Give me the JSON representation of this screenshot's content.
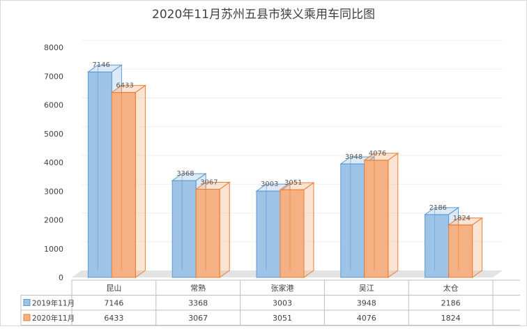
{
  "chart_data": {
    "type": "bar",
    "title": "2020年11月苏州五县市狭义乘用车同比图",
    "categories": [
      "昆山",
      "常熟",
      "张家港",
      "吴江",
      "太仓"
    ],
    "series": [
      {
        "name": "2019年11月",
        "values": [
          7146,
          3368,
          3003,
          3948,
          2186
        ],
        "color": "#9dc3e6",
        "edge": "#5b9bd5"
      },
      {
        "name": "2020年11月",
        "values": [
          6433,
          3067,
          3051,
          4076,
          1824
        ],
        "color": "#f4b183",
        "edge": "#ed7d31"
      }
    ],
    "ylim": [
      0,
      8000
    ],
    "yticks": [
      "0",
      "1000",
      "2000",
      "3000",
      "4000",
      "5000",
      "6000",
      "7000",
      "8000"
    ],
    "style": "3d-column",
    "grid": true,
    "data_table": true,
    "data_labels": true
  }
}
